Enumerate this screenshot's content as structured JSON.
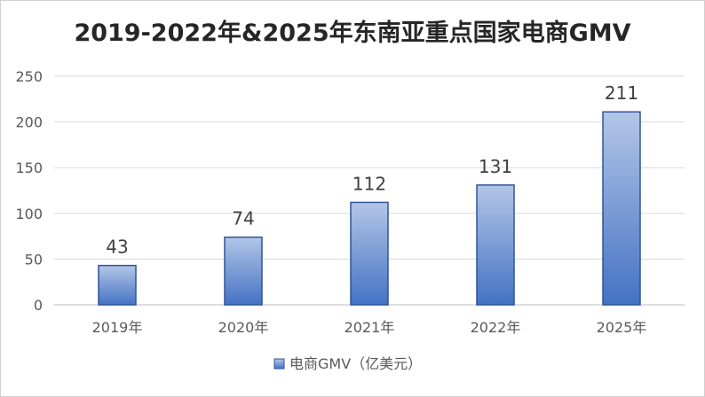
{
  "chart_data": {
    "type": "bar",
    "title": "2019-2022年&2025年东南亚重点国家电商GMV",
    "categories": [
      "2019年",
      "2020年",
      "2021年",
      "2022年",
      "2025年"
    ],
    "series": [
      {
        "name": "电商GMV（亿美元）",
        "values": [
          43,
          74,
          112,
          131,
          211
        ]
      }
    ],
    "ylim": [
      0,
      250
    ],
    "yticks": [
      0,
      50,
      100,
      150,
      200,
      250
    ],
    "xlabel": "",
    "ylabel": "",
    "grid": true,
    "legend_position": "bottom",
    "data_labels": true,
    "colors": {
      "bar_top": "#b3c6e7",
      "bar_bottom": "#4472c4",
      "bar_border": "#2f5597",
      "grid": "#d9d9d9",
      "axis": "#bfbfbf",
      "title": "#262626",
      "tick_text": "#595959",
      "label_text": "#404040"
    }
  }
}
